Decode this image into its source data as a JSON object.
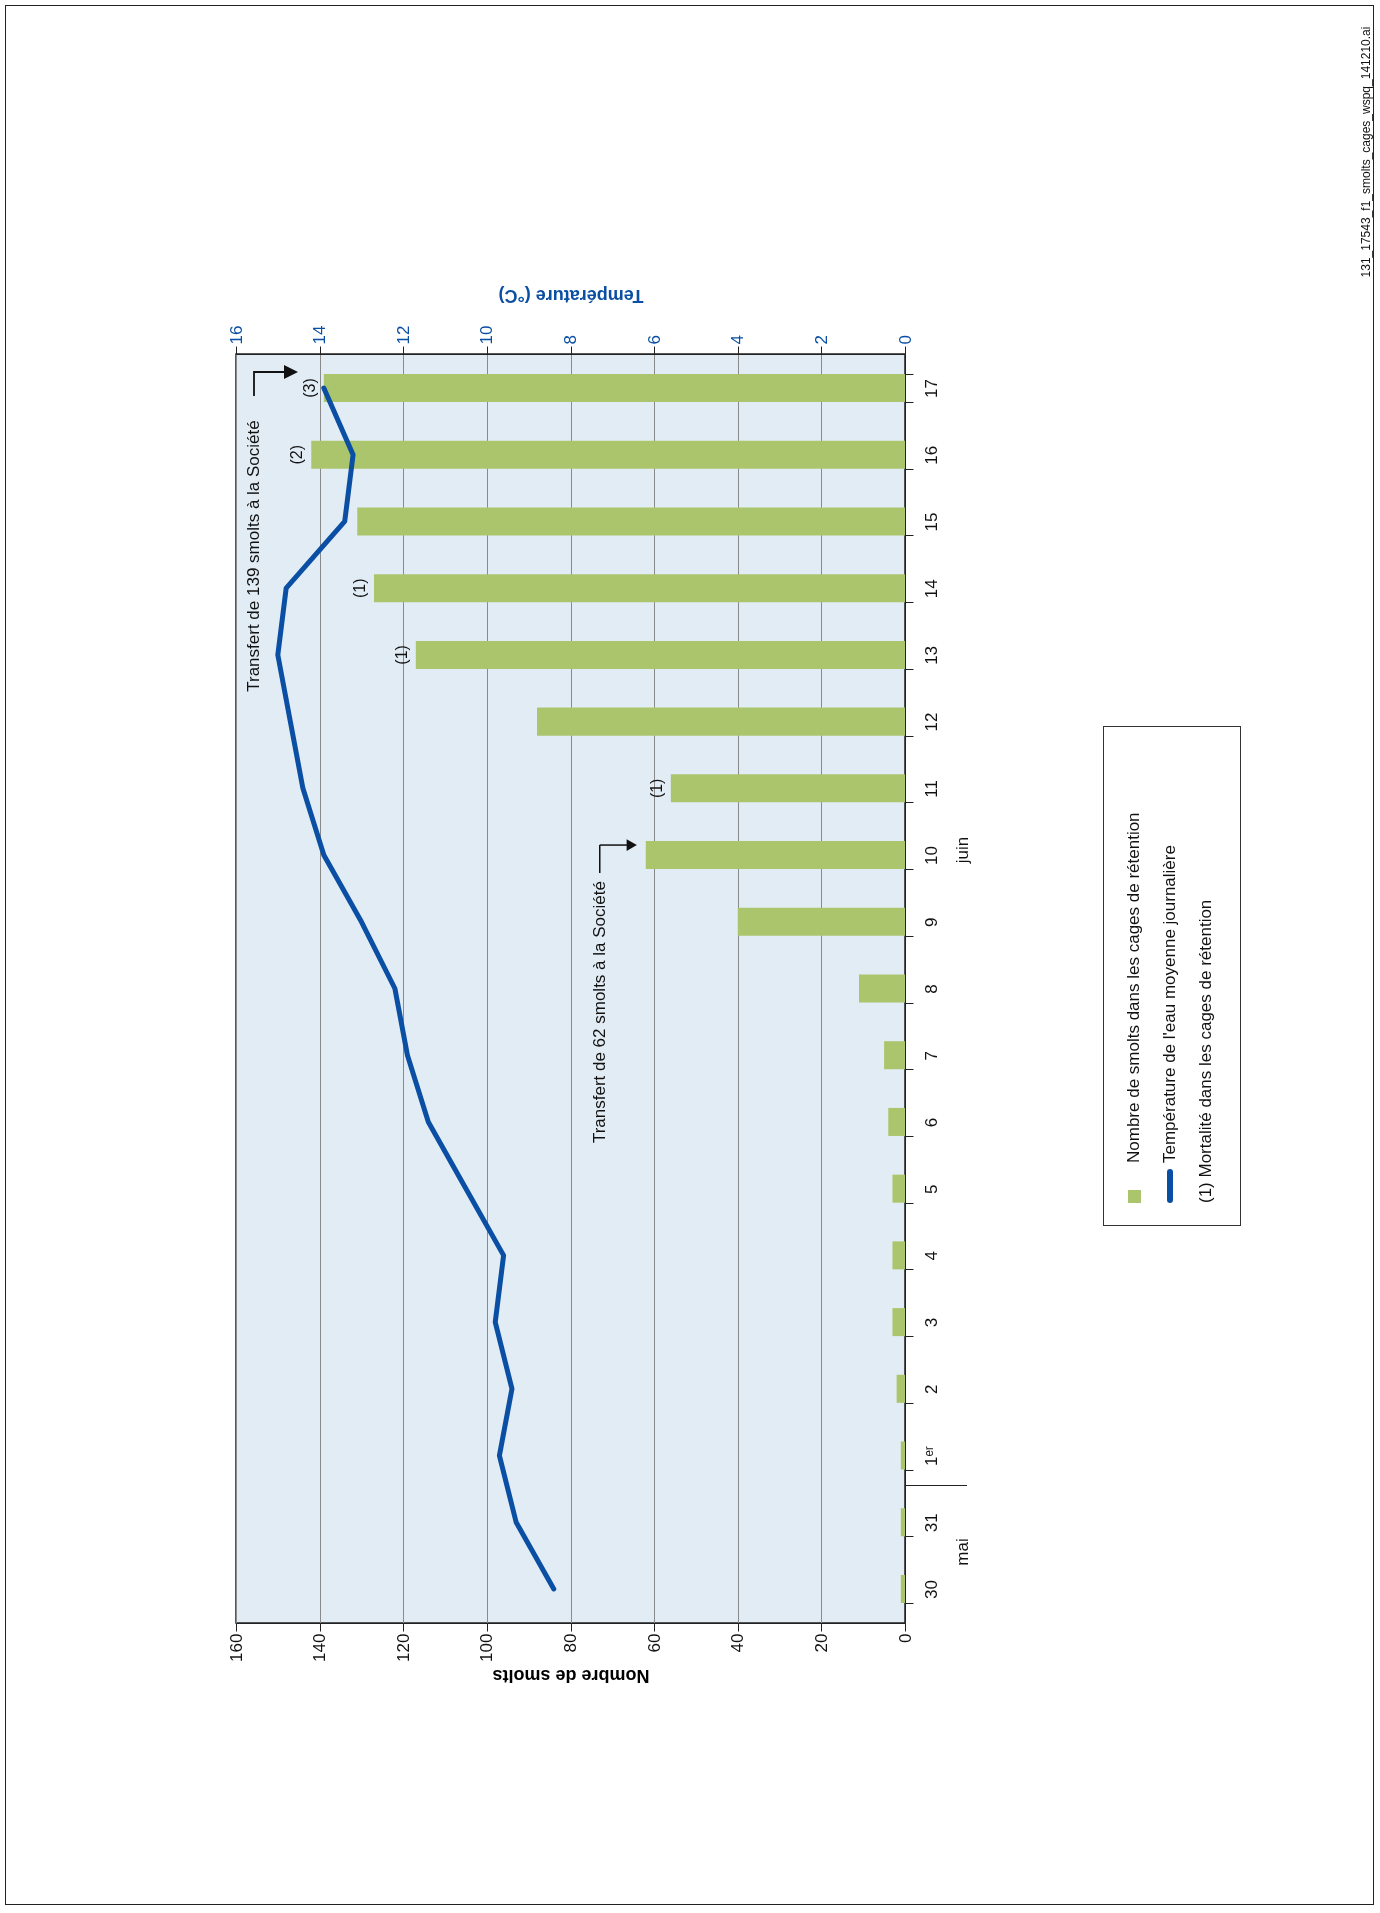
{
  "chart_data": {
    "type": "bar",
    "orientation": "horizontal",
    "categories": [
      "17",
      "16",
      "15",
      "14",
      "13",
      "12",
      "11",
      "10",
      "9",
      "8",
      "7",
      "6",
      "5",
      "4",
      "3",
      "2",
      "1ᵉʳ",
      "31",
      "30"
    ],
    "series": [
      {
        "name": "Nombre de smolts dans les cages de rétention",
        "color": "#abc56c",
        "values": [
          139,
          142,
          131,
          127,
          117,
          88,
          56,
          62,
          40,
          11,
          5,
          4,
          3,
          3,
          3,
          2,
          1,
          1,
          1
        ]
      },
      {
        "name": "Température de l'eau moyenne journalière",
        "type": "line",
        "axis": "x2",
        "color": "#0a4fa3",
        "values": [
          13.9,
          13.2,
          13.4,
          14.8,
          15.0,
          14.7,
          14.4,
          13.9,
          13.0,
          12.2,
          11.9,
          11.4,
          10.5,
          9.6,
          9.8,
          9.4,
          9.7,
          9.3,
          8.4
        ]
      }
    ],
    "xlabel": "Nombre de smolts",
    "x2label": "Température (°C)",
    "xlim": [
      160,
      0
    ],
    "xticks": [
      160,
      140,
      120,
      100,
      80,
      60,
      40,
      20,
      0
    ],
    "x2lim": [
      16,
      0
    ],
    "x2ticks": [
      16,
      14,
      12,
      10,
      8,
      6,
      4,
      2,
      0
    ],
    "grid": "x",
    "legend": "right",
    "annotations": [
      "(1) Mortalité dans les cages de rétention",
      "131_17543_f1_smolts_cages_wspq_141210.ai",
      "mai",
      "juin",
      "Transfert de 139 smolts à la Société",
      {
        "text": "Transfert de 62 smolts à la Société",
        "x": 62,
        "y": "10"
      },
      {
        "text": "(1)",
        "x": 56,
        "y": "11"
      },
      {
        "text": "(1)",
        "x": 117,
        "y": "13"
      },
      {
        "text": "(1)",
        "x": 127,
        "y": "14"
      },
      {
        "text": "(2)",
        "x": 142,
        "y": "16"
      },
      {
        "text": "(3)",
        "x": 139,
        "y": "17"
      }
    ]
  }
}
